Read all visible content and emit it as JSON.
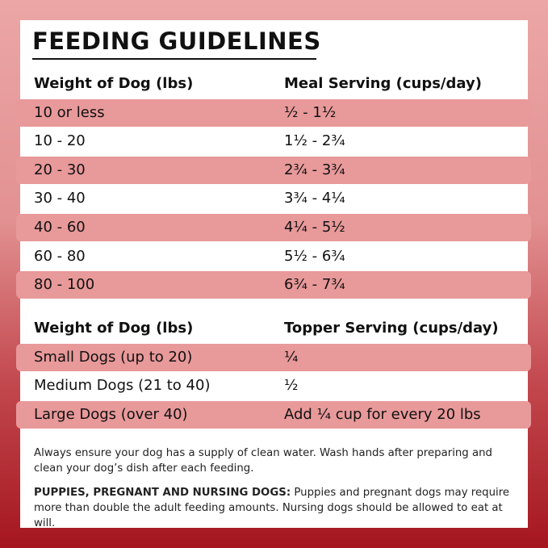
{
  "header": {
    "title": "FEEDING GUIDELINES"
  },
  "tables": [
    {
      "columns": [
        "Weight of Dog (lbs)",
        "Meal Serving (cups/day)"
      ],
      "rows": [
        [
          "10 or less",
          "½ - 1½"
        ],
        [
          "10 - 20",
          "1½ - 2¾"
        ],
        [
          "20 - 30",
          "2¾ - 3¾"
        ],
        [
          "30 - 40",
          "3¾ - 4¼"
        ],
        [
          "40 - 60",
          "4¼ - 5½"
        ],
        [
          "60 - 80",
          "5½ - 6¾"
        ],
        [
          "80 - 100",
          "6¾ - 7¾"
        ]
      ]
    },
    {
      "columns": [
        "Weight of Dog (lbs)",
        "Topper Serving (cups/day)"
      ],
      "rows": [
        [
          "Small Dogs (up to 20)",
          "¼"
        ],
        [
          "Medium Dogs (21 to 40)",
          "½"
        ],
        [
          "Large Dogs (over 40)",
          "Add ¼ cup for every 20 lbs"
        ]
      ]
    }
  ],
  "notes": [
    {
      "text": "Always ensure your dog has a supply of clean water. Wash hands after preparing and clean your dog’s dish after each feeding."
    },
    {
      "label": "PUPPIES, PREGNANT AND NURSING DOGS:",
      "text": "Puppies and pregnant dogs may require more than double the adult feeding amounts. Nursing dogs should be allowed to eat at will."
    }
  ]
}
